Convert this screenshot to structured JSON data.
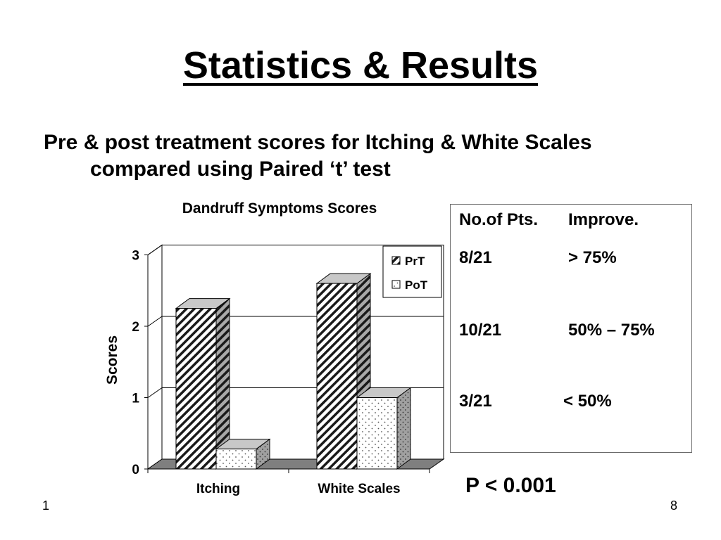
{
  "slide": {
    "title": "Statistics & Results",
    "subtitle_line1": "Pre & post treatment scores for Itching & White Scales",
    "subtitle_line2": "compared using Paired ‘t’ test",
    "footer_left": "1",
    "footer_right": "8"
  },
  "results_table": {
    "headers": [
      "No.of Pts.",
      "Improve."
    ],
    "rows": [
      {
        "patients": "8/21",
        "improve": "> 75%"
      },
      {
        "patients": "10/21",
        "improve": "50% – 75%"
      },
      {
        "patients": "3/21",
        "improve": "< 50%"
      }
    ],
    "p_value": "P < 0.001"
  },
  "chart_data": {
    "type": "bar",
    "title": "Dandruff Symptoms Scores",
    "xlabel": "",
    "ylabel": "Scores",
    "categories": [
      "Itching",
      "White Scales"
    ],
    "series": [
      {
        "name": "PrT",
        "values": [
          2.25,
          2.6
        ],
        "pattern": "diagonal-hatch"
      },
      {
        "name": "PoT",
        "values": [
          0.28,
          1.0
        ],
        "pattern": "dotted"
      }
    ],
    "ylim": [
      0,
      3
    ],
    "yticks": [
      "0",
      "1",
      "2",
      "3"
    ],
    "grid": true,
    "legend": "top-right",
    "colors": {
      "shadow": "#7f7f7f",
      "side": "#9a9a9a",
      "top": "#c8c8c8"
    }
  }
}
